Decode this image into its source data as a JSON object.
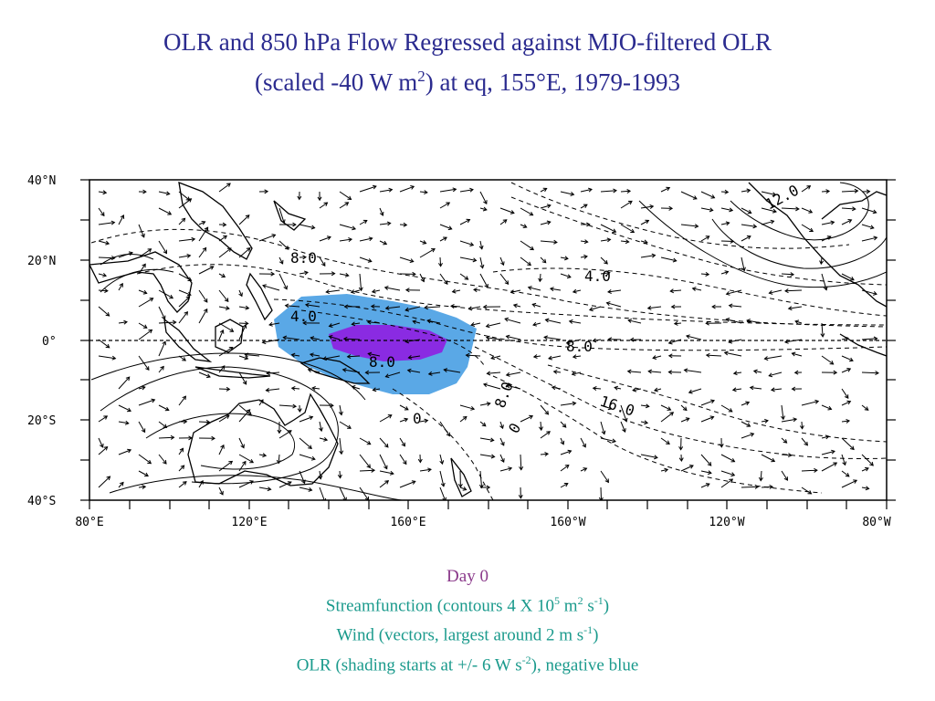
{
  "title": {
    "line1": "OLR and 850 hPa Flow Regressed against MJO-filtered OLR",
    "line2_pre": "(scaled -40 W m",
    "line2_sup": "2",
    "line2_post": ") at eq, 155°E, 1979-1993"
  },
  "map": {
    "lat_labels": [
      "40°N",
      "20°N",
      "0°",
      "20°S",
      "40°S"
    ],
    "lon_labels": [
      "80°E",
      "120°E",
      "160°E",
      "160°W",
      "120°W",
      "80°W"
    ],
    "contour_labels": [
      "12.0",
      "8.0",
      "4.0",
      "8.0",
      "4.0",
      "16.0",
      "8.0",
      "0",
      "0",
      "8.0"
    ],
    "colors": {
      "olr_light": "#5aa8e6",
      "olr_dark": "#8a2be2",
      "line": "#000000"
    }
  },
  "caption": {
    "day": "Day 0",
    "line1_pre": "Streamfunction (contours 4 X 10",
    "line1_sup1": "5",
    "line1_mid": " m",
    "line1_sup2": "2",
    "line1_mid2": " s",
    "line1_sup3": "-1",
    "line1_post": ")",
    "line2_pre": "Wind (vectors, largest around 2 m s",
    "line2_sup": "-1",
    "line2_post": ")",
    "line3_pre": "OLR (shading starts at +/- 6 W s",
    "line3_sup": "-2",
    "line3_post": "), negative blue"
  }
}
